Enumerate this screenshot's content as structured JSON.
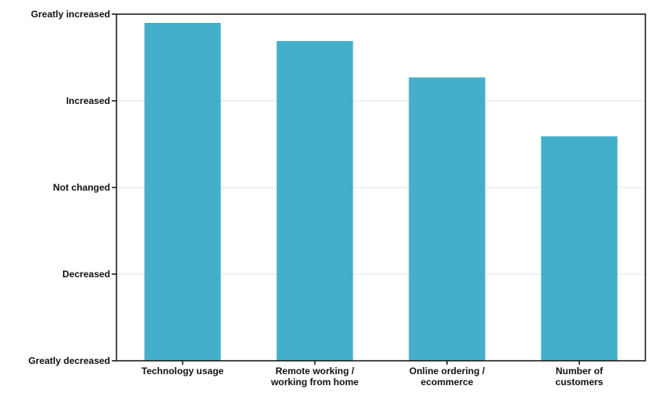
{
  "chart_data": {
    "type": "bar",
    "categories": [
      [
        "Technology usage"
      ],
      [
        "Remote working /",
        "working from home"
      ],
      [
        "Online ordering /",
        "ecommerce"
      ],
      [
        "Number of",
        "customers"
      ]
    ],
    "values": [
      1.9,
      1.69,
      1.27,
      0.59
    ],
    "y_tick_labels": [
      "Greatly decreased",
      "Decreased",
      "Not changed",
      "Increased",
      "Greatly increased"
    ],
    "y_tick_values": [
      -2,
      -1,
      0,
      1,
      2
    ],
    "ylim": [
      -2,
      2
    ],
    "grid": true,
    "legend": "none",
    "colors": {
      "bar": "#44afcb",
      "grid": "#e3e3e3",
      "axis": "#111111"
    }
  }
}
